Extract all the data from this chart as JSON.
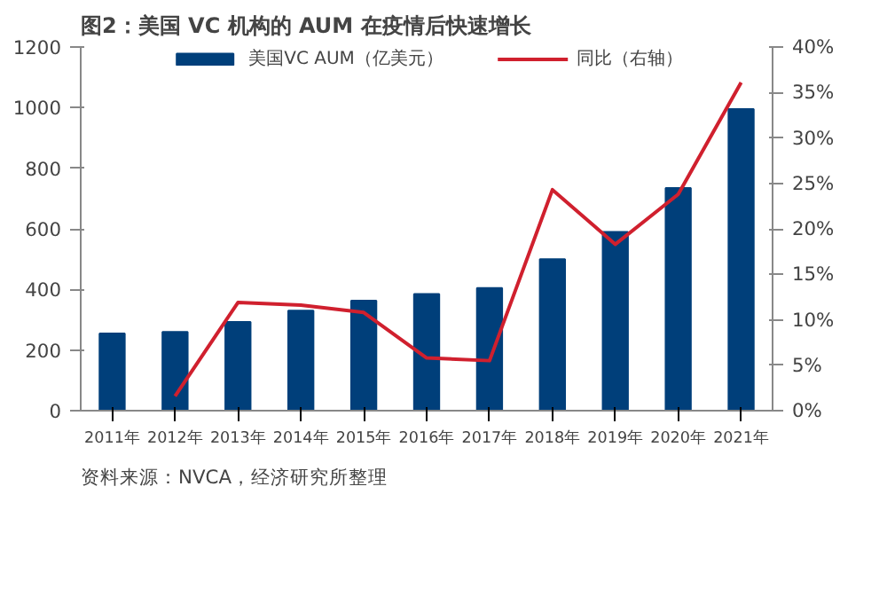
{
  "chart_data": {
    "type": "bar",
    "title": "图2：美国 VC 机构的 AUM 在疫情后快速增长",
    "categories": [
      "2011年",
      "2012年",
      "2013年",
      "2014年",
      "2015年",
      "2016年",
      "2017年",
      "2018年",
      "2019年",
      "2020年",
      "2021年"
    ],
    "series": [
      {
        "name": "美国VC AUM（亿美元）",
        "color": "#003f7a",
        "values": [
          255,
          260,
          293,
          330,
          363,
          385,
          405,
          500,
          590,
          735,
          995
        ]
      },
      {
        "name": "同比（右轴）",
        "type": "line",
        "axis": "y2",
        "color": "#d0202e",
        "values": [
          null,
          1.6,
          11.9,
          11.6,
          10.8,
          5.8,
          5.5,
          24.3,
          18.3,
          23.8,
          36.1
        ]
      }
    ],
    "ylim": [
      0,
      1200
    ],
    "yticks": [
      0,
      200,
      400,
      600,
      800,
      1000,
      1200
    ],
    "y2lim": [
      0,
      40
    ],
    "y2ticks": [
      {
        "value": 0,
        "label": "0%"
      },
      {
        "value": 5,
        "label": "5%"
      },
      {
        "value": 10,
        "label": "10%"
      },
      {
        "value": 15,
        "label": "15%"
      },
      {
        "value": 20,
        "label": "20%"
      },
      {
        "value": 25,
        "label": "25%"
      },
      {
        "value": 30,
        "label": "30%"
      },
      {
        "value": 35,
        "label": "35%"
      },
      {
        "value": 40,
        "label": "40%"
      }
    ],
    "legend": "top",
    "grid": false,
    "marker": "none",
    "annotations": [
      "资料来源：NVCA，经济研究所整理"
    ]
  }
}
